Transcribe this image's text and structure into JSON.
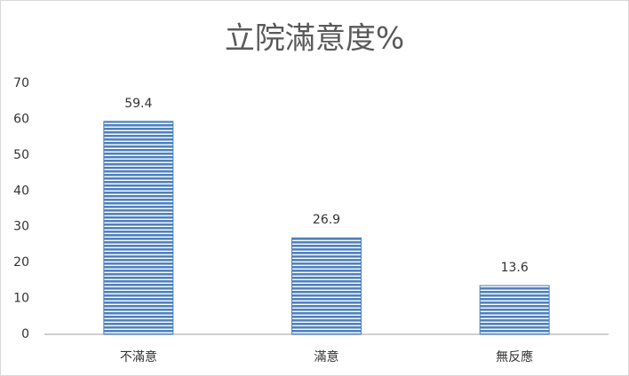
{
  "chart_data": {
    "type": "bar",
    "title": "立院滿意度%",
    "categories": [
      "不滿意",
      "滿意",
      "無反應"
    ],
    "values": [
      59.4,
      26.9,
      13.6
    ],
    "color": "#4f81bd",
    "ylim": [
      0,
      70
    ],
    "yticks": [
      0,
      10,
      20,
      30,
      40,
      50,
      60,
      70
    ],
    "grid": false
  }
}
